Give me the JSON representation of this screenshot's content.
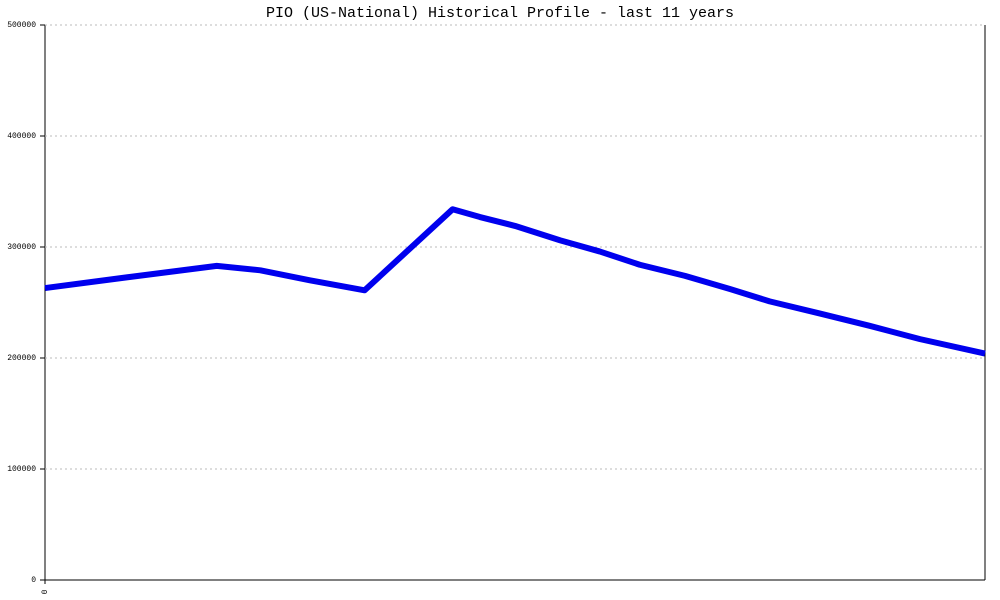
{
  "chart_data": {
    "type": "line",
    "title": "PIO (US-National) Historical Profile - last 11 years",
    "x": [
      0,
      0.99,
      2.01,
      2.52,
      3.1,
      3.74,
      4.77,
      5.09,
      5.5,
      6.03,
      6.49,
      6.96,
      7.49,
      8.02,
      8.48,
      9.07,
      9.65,
      10.24,
      11
    ],
    "series": [
      {
        "color": "#0000ee",
        "values": [
          263000,
          273000,
          283000,
          279000,
          270000,
          261000,
          334000,
          327000,
          319000,
          306000,
          296000,
          284000,
          274000,
          262000,
          251000,
          240000,
          229000,
          217000,
          204000
        ]
      }
    ],
    "xlim": [
      0,
      11
    ],
    "xticks": [
      0
    ],
    "ylim": [
      0,
      500000
    ],
    "yticks": [
      0,
      100000,
      200000,
      300000,
      400000,
      500000
    ],
    "grid": true
  }
}
